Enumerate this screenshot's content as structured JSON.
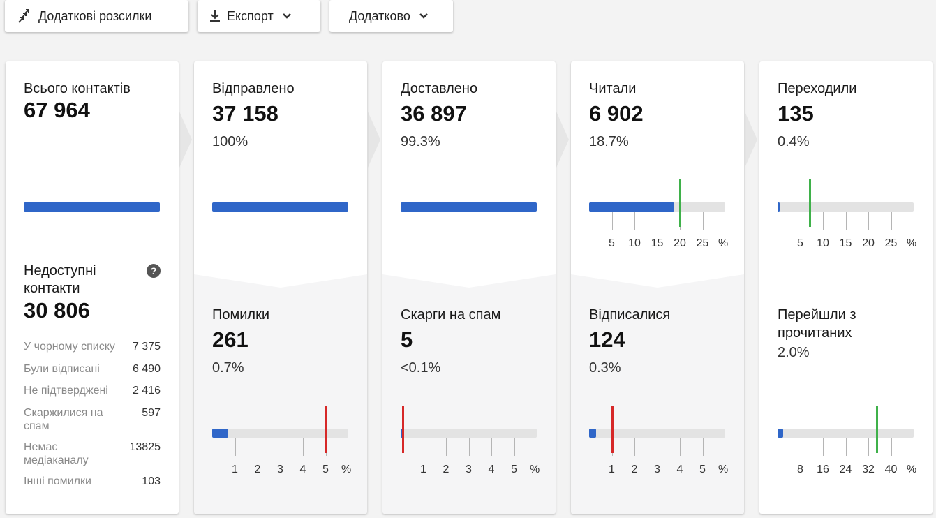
{
  "toolbar": {
    "extra_mailings": "Додаткові розсилки",
    "export": "Експорт",
    "more": "Додатково"
  },
  "total": {
    "label": "Всього контактів",
    "value": "67 964",
    "bar_fraction": 1.0
  },
  "unavailable": {
    "label_line1": "Недоступні",
    "label_line2": "контакти",
    "help": "?",
    "value": "30 806",
    "rows": [
      {
        "label": "У чорному списку",
        "value": "7 375"
      },
      {
        "label": "Були відписані",
        "value": "6 490"
      },
      {
        "label": "Не підтверджені",
        "value": "2 416"
      },
      {
        "label": "Скаржилися на спам",
        "value": "597"
      },
      {
        "label": "Немає медіаканалу",
        "value": "13825"
      },
      {
        "label": "Інші помилки",
        "value": "103"
      }
    ]
  },
  "sent": {
    "label": "Відправлено",
    "value": "37 158",
    "pct": "100%",
    "bar_fraction": 1.0
  },
  "delivered": {
    "label": "Доставлено",
    "value": "36 897",
    "pct": "99.3%",
    "bar_fraction": 1.0
  },
  "read": {
    "label": "Читали",
    "value": "6 902",
    "pct": "18.7%",
    "bar_value": 18.7,
    "marker_value": 20,
    "axis_max": 30,
    "ticks": [
      "5",
      "10",
      "15",
      "20",
      "25"
    ],
    "unit": "%",
    "marker_color": "#3fb14a"
  },
  "clicked": {
    "label": "Переходили",
    "value": "135",
    "pct": "0.4%",
    "bar_value": 0.4,
    "marker_value": 7,
    "axis_max": 30,
    "ticks": [
      "5",
      "10",
      "15",
      "20",
      "25"
    ],
    "unit": "%",
    "marker_color": "#3fb14a"
  },
  "errors": {
    "label": "Помилки",
    "value": "261",
    "pct": "0.7%",
    "bar_value": 0.7,
    "marker_value": 5,
    "axis_max": 6,
    "ticks": [
      "1",
      "2",
      "3",
      "4",
      "5"
    ],
    "unit": "%",
    "marker_color": "#d62828"
  },
  "spam": {
    "label": "Скарги на спам",
    "value": "5",
    "pct": "<0.1%",
    "bar_value": 0.05,
    "marker_value": 0.1,
    "axis_max": 6,
    "ticks": [
      "1",
      "2",
      "3",
      "4",
      "5"
    ],
    "unit": "%",
    "marker_color": "#d62828"
  },
  "unsubscribed": {
    "label": "Відписалися",
    "value": "124",
    "pct": "0.3%",
    "bar_value": 0.3,
    "marker_value": 1,
    "axis_max": 6,
    "ticks": [
      "1",
      "2",
      "3",
      "4",
      "5"
    ],
    "unit": "%",
    "marker_color": "#d62828"
  },
  "clicked_of_read": {
    "label_line1": "Перейшли з",
    "label_line2": "прочитаних",
    "pct": "2.0%",
    "bar_value": 2.0,
    "marker_value": 35,
    "axis_max": 48,
    "ticks": [
      "8",
      "16",
      "24",
      "32",
      "40"
    ],
    "unit": "%",
    "marker_color": "#3fb14a"
  },
  "colors": {
    "bar": "#2f66c8",
    "track": "#e3e3e3",
    "good": "#3fb14a",
    "bad": "#d62828"
  }
}
